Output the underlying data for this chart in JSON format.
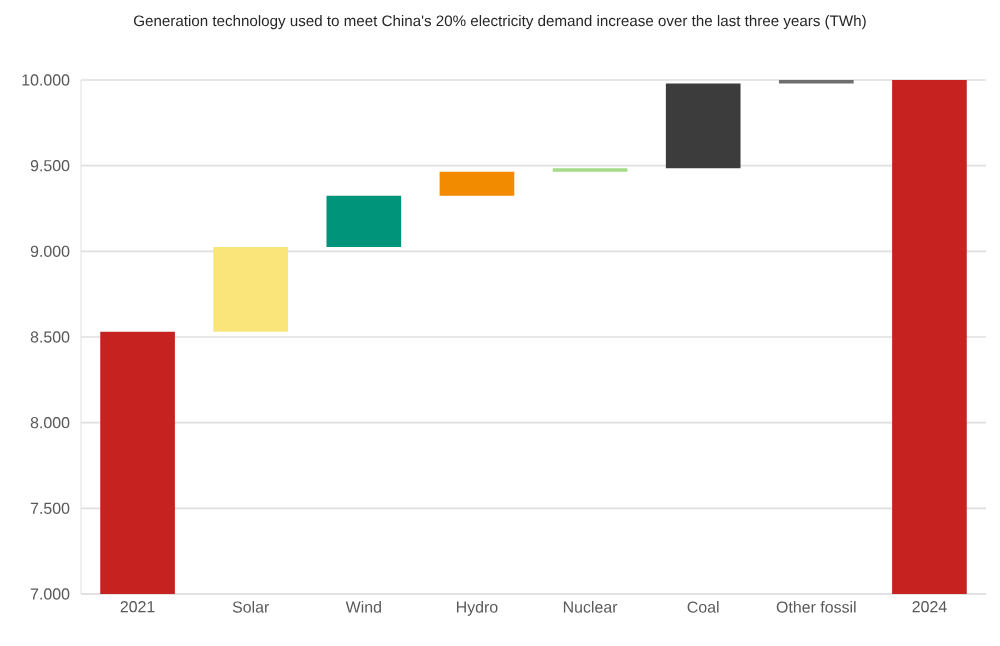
{
  "chart_data": {
    "type": "bar",
    "title": "Generation technology used to meet China's 20% electricity demand increase over the last three years (TWh)",
    "categories": [
      "2021",
      "Solar",
      "Wind",
      "Hydro",
      "Nuclear",
      "Coal",
      "Other fossil",
      "2024"
    ],
    "values": [
      8530,
      495,
      300,
      140,
      20,
      495,
      20,
      10000
    ],
    "base": [
      null,
      8530,
      9025,
      9325,
      9465,
      9485,
      9980,
      null
    ],
    "colors": [
      "#c52220",
      "#f9e57a",
      "#00957a",
      "#f28b00",
      "#a4dc88",
      "#3c3c3c",
      "#6e6e6e",
      "#c52220"
    ],
    "ylim": [
      7000,
      10000
    ],
    "yticks": [
      {
        "value": 7000,
        "label": "7.000"
      },
      {
        "value": 7500,
        "label": "7.500"
      },
      {
        "value": 8000,
        "label": "8.000"
      },
      {
        "value": 8500,
        "label": "8.500"
      },
      {
        "value": 9000,
        "label": "9.000"
      },
      {
        "value": 9500,
        "label": "9.500"
      },
      {
        "value": 10000,
        "label": "10.000"
      }
    ],
    "grid": "y"
  }
}
